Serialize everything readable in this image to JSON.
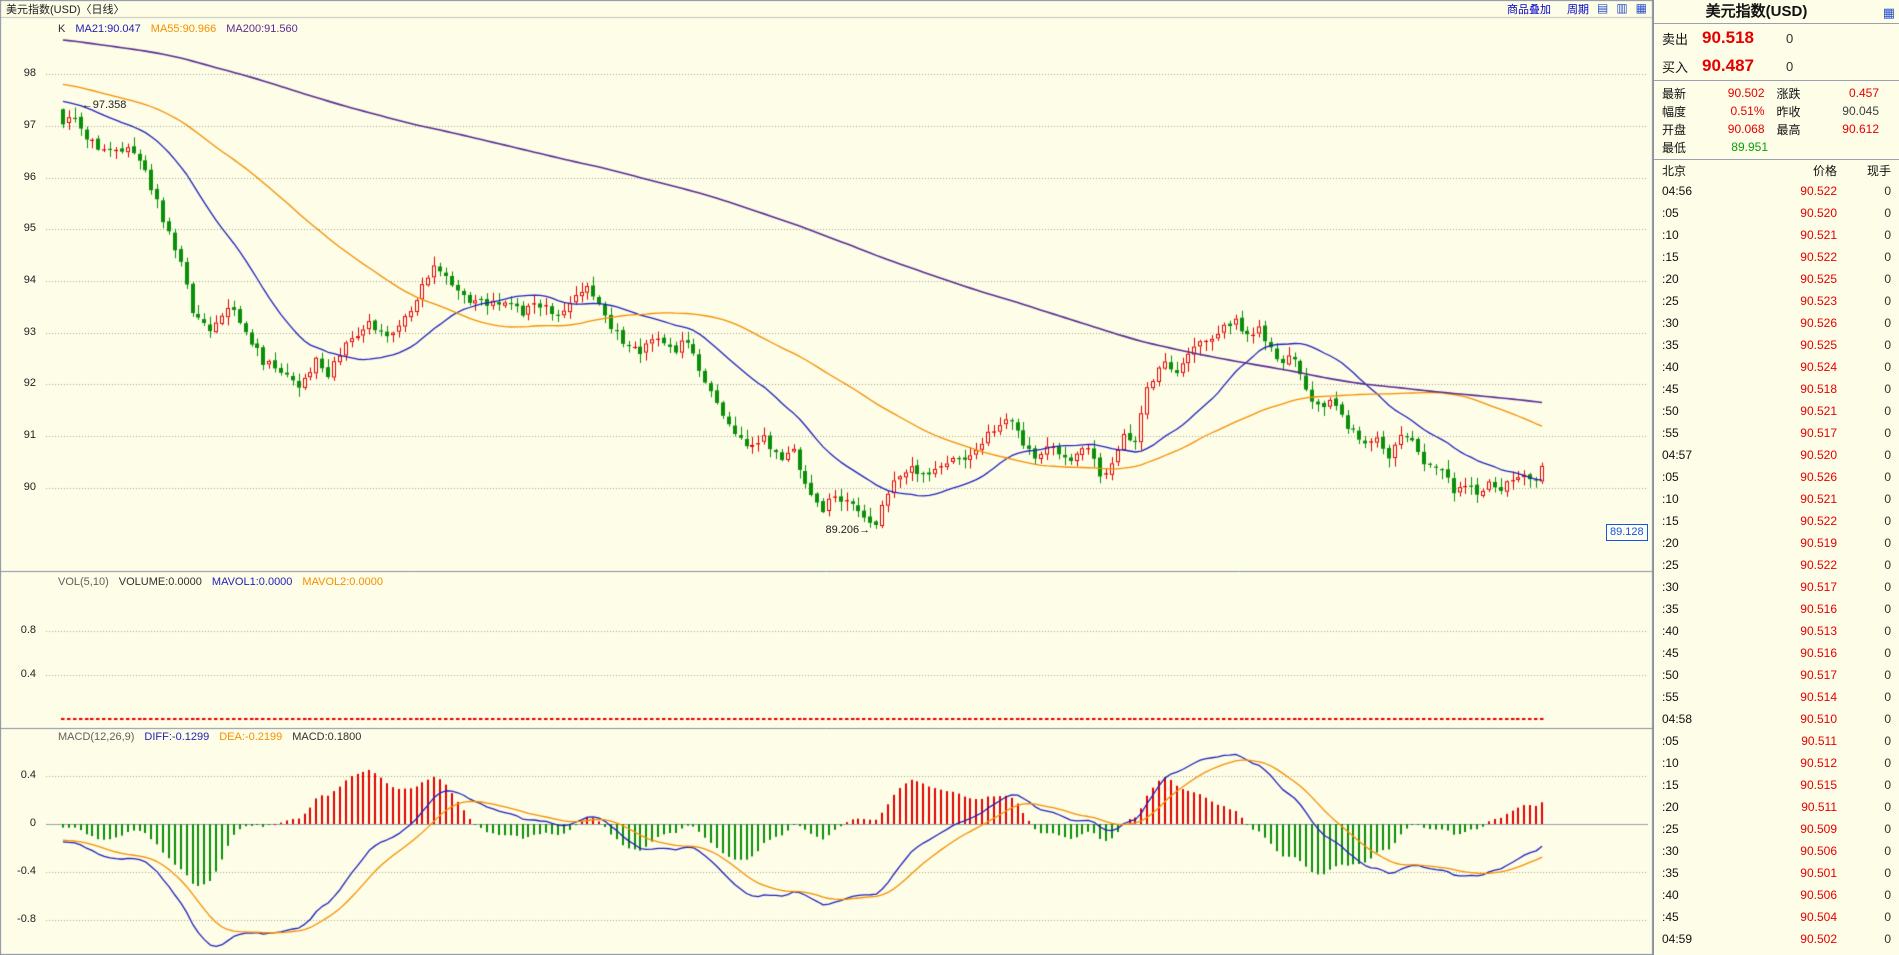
{
  "window": {
    "chart_title": "美元指数(USD)〈日线〉",
    "toolbar": {
      "overlay": "商品叠加",
      "period": "周期",
      "icon_glyphs": [
        "▤",
        "▥",
        "▦"
      ]
    }
  },
  "colors": {
    "bg": "#fdfde8",
    "up": "#e60000",
    "down": "#0b8f0b",
    "ma21": "#2222bb",
    "ma55": "#f59000",
    "ma200": "#5b2d8e",
    "grid": "#a8a890",
    "border": "#8890a0",
    "zero_line": "#9aa0a8",
    "link": "#0000cc",
    "tag": "#1555e0",
    "red": "#e60000",
    "green": "#0aa00a",
    "text": "#303030",
    "muted": "#606060"
  },
  "main_panel": {
    "legend": [
      {
        "text": "K",
        "color": "#303030"
      },
      {
        "text": "MA21:90.047",
        "color": "#2222bb"
      },
      {
        "text": "MA55:90.966",
        "color": "#f59000"
      },
      {
        "text": "MA200:91.560",
        "color": "#5b2d8e"
      }
    ],
    "high_label": "←97.358",
    "low_label": "89.206→",
    "right_tag": "89.128"
  },
  "vol_panel": {
    "legend": [
      {
        "text": "VOL(5,10)",
        "color": "#606060"
      },
      {
        "text": "VOLUME:0.0000",
        "color": "#303030"
      },
      {
        "text": "MAVOL1:0.0000",
        "color": "#2222bb"
      },
      {
        "text": "MAVOL2:0.0000",
        "color": "#f59000"
      }
    ]
  },
  "macd_panel": {
    "legend": [
      {
        "text": "MACD(12,26,9)",
        "color": "#606060"
      },
      {
        "text": "DIFF:-0.1299",
        "color": "#2222bb"
      },
      {
        "text": "DEA:-0.2199",
        "color": "#f59000"
      },
      {
        "text": "MACD:0.1800",
        "color": "#303030"
      }
    ]
  },
  "quote_panel": {
    "title": "美元指数(USD)",
    "icon_glyph": "▦",
    "sell": {
      "label": "卖出",
      "price": "90.518",
      "qty": "0"
    },
    "buy": {
      "label": "买入",
      "price": "90.487",
      "qty": "0"
    },
    "stats_rows": [
      [
        {
          "label": "最新",
          "value": "90.502",
          "cls": "red"
        },
        {
          "label": "涨跌",
          "value": "0.457",
          "cls": "red"
        }
      ],
      [
        {
          "label": "幅度",
          "value": "0.51%",
          "cls": "red"
        },
        {
          "label": "昨收",
          "value": "90.045",
          "cls": "plain"
        }
      ],
      [
        {
          "label": "开盘",
          "value": "90.068",
          "cls": "red"
        },
        {
          "label": "最高",
          "value": "90.612",
          "cls": "red"
        }
      ],
      [
        {
          "label": "最低",
          "value": "89.951",
          "cls": "green"
        }
      ]
    ],
    "table_header": [
      "北京",
      "价格",
      "现手"
    ],
    "ticks": [
      [
        "04:56",
        "90.522",
        "0"
      ],
      [
        ":05",
        "90.520",
        "0"
      ],
      [
        ":10",
        "90.521",
        "0"
      ],
      [
        ":15",
        "90.522",
        "0"
      ],
      [
        ":20",
        "90.525",
        "0"
      ],
      [
        ":25",
        "90.523",
        "0"
      ],
      [
        ":30",
        "90.526",
        "0"
      ],
      [
        ":35",
        "90.525",
        "0"
      ],
      [
        ":40",
        "90.524",
        "0"
      ],
      [
        ":45",
        "90.518",
        "0"
      ],
      [
        ":50",
        "90.521",
        "0"
      ],
      [
        ":55",
        "90.517",
        "0"
      ],
      [
        "04:57",
        "90.520",
        "0"
      ],
      [
        ":05",
        "90.526",
        "0"
      ],
      [
        ":10",
        "90.521",
        "0"
      ],
      [
        ":15",
        "90.522",
        "0"
      ],
      [
        ":20",
        "90.519",
        "0"
      ],
      [
        ":25",
        "90.522",
        "0"
      ],
      [
        ":30",
        "90.517",
        "0"
      ],
      [
        ":35",
        "90.516",
        "0"
      ],
      [
        ":40",
        "90.513",
        "0"
      ],
      [
        ":45",
        "90.516",
        "0"
      ],
      [
        ":50",
        "90.517",
        "0"
      ],
      [
        ":55",
        "90.514",
        "0"
      ],
      [
        "04:58",
        "90.510",
        "0"
      ],
      [
        ":05",
        "90.511",
        "0"
      ],
      [
        ":10",
        "90.512",
        "0"
      ],
      [
        ":15",
        "90.515",
        "0"
      ],
      [
        ":20",
        "90.511",
        "0"
      ],
      [
        ":25",
        "90.509",
        "0"
      ],
      [
        ":30",
        "90.506",
        "0"
      ],
      [
        ":35",
        "90.501",
        "0"
      ],
      [
        ":40",
        "90.506",
        "0"
      ],
      [
        ":45",
        "90.504",
        "0"
      ],
      [
        "04:59",
        "90.502",
        "0"
      ]
    ]
  },
  "chart_data": {
    "type": "candlestick",
    "symbol": "美元指数(USD)",
    "period": "日线",
    "visible_count": 252,
    "y_range": [
      88.45,
      99.05
    ],
    "y_gridlines": [
      98,
      97,
      96,
      95,
      94,
      93,
      92,
      91,
      90
    ],
    "marked_high": {
      "index": 2,
      "price": 97.358
    },
    "marked_low": {
      "index": 138,
      "price": 89.206
    },
    "right_axis_tag": 89.128,
    "ma_periods": [
      21,
      55,
      200
    ],
    "ma_displayed": {
      "ma21": 90.047,
      "ma55": 90.966,
      "ma200": 91.56
    },
    "volume": {
      "volume": 0,
      "mavol1": 0,
      "mavol2": 0,
      "y_gridlines": [
        0.8,
        0.4
      ]
    },
    "macd": {
      "params": [
        12,
        26,
        9
      ],
      "diff": -0.1299,
      "dea": -0.2199,
      "bar": 0.18,
      "y_gridlines": [
        0.4,
        0,
        -0.4,
        -0.8
      ]
    },
    "prehistory_anchors": [
      [
        -200,
        99.8
      ],
      [
        -140,
        99.1
      ],
      [
        -90,
        98.6
      ],
      [
        -40,
        98.1
      ],
      [
        -1,
        97.3
      ]
    ],
    "close_anchors": [
      [
        0,
        97.05
      ],
      [
        2,
        97.2
      ],
      [
        4,
        96.8
      ],
      [
        8,
        96.45
      ],
      [
        12,
        96.55
      ],
      [
        14,
        96.1
      ],
      [
        17,
        95.2
      ],
      [
        20,
        94.3
      ],
      [
        22,
        93.4
      ],
      [
        25,
        93.1
      ],
      [
        28,
        93.55
      ],
      [
        31,
        93.0
      ],
      [
        34,
        92.45
      ],
      [
        37,
        92.3
      ],
      [
        40,
        92.0
      ],
      [
        43,
        92.45
      ],
      [
        45,
        92.15
      ],
      [
        48,
        92.8
      ],
      [
        52,
        93.15
      ],
      [
        55,
        92.95
      ],
      [
        58,
        93.3
      ],
      [
        61,
        93.9
      ],
      [
        63,
        94.35
      ],
      [
        66,
        93.9
      ],
      [
        69,
        93.6
      ],
      [
        72,
        93.55
      ],
      [
        75,
        93.65
      ],
      [
        78,
        93.4
      ],
      [
        81,
        93.55
      ],
      [
        84,
        93.3
      ],
      [
        87,
        93.65
      ],
      [
        89,
        93.95
      ],
      [
        92,
        93.3
      ],
      [
        95,
        92.85
      ],
      [
        98,
        92.6
      ],
      [
        101,
        92.95
      ],
      [
        104,
        92.7
      ],
      [
        106,
        92.85
      ],
      [
        108,
        92.3
      ],
      [
        111,
        91.6
      ],
      [
        113,
        91.15
      ],
      [
        116,
        90.8
      ],
      [
        119,
        90.95
      ],
      [
        122,
        90.55
      ],
      [
        124,
        90.75
      ],
      [
        126,
        90.05
      ],
      [
        129,
        89.6
      ],
      [
        131,
        89.85
      ],
      [
        134,
        89.7
      ],
      [
        136,
        89.5
      ],
      [
        138,
        89.3
      ],
      [
        140,
        89.9
      ],
      [
        142,
        90.25
      ],
      [
        144,
        90.4
      ],
      [
        147,
        90.25
      ],
      [
        150,
        90.45
      ],
      [
        153,
        90.6
      ],
      [
        156,
        90.9
      ],
      [
        160,
        91.4
      ],
      [
        163,
        90.9
      ],
      [
        165,
        90.65
      ],
      [
        168,
        90.8
      ],
      [
        171,
        90.6
      ],
      [
        174,
        90.85
      ],
      [
        176,
        90.15
      ],
      [
        178,
        90.5
      ],
      [
        180,
        91.1
      ],
      [
        182,
        90.9
      ],
      [
        184,
        91.9
      ],
      [
        187,
        92.45
      ],
      [
        189,
        92.2
      ],
      [
        192,
        92.75
      ],
      [
        195,
        92.9
      ],
      [
        199,
        93.25
      ],
      [
        201,
        92.95
      ],
      [
        203,
        93.1
      ],
      [
        206,
        92.45
      ],
      [
        209,
        92.5
      ],
      [
        211,
        91.95
      ],
      [
        213,
        91.55
      ],
      [
        215,
        91.7
      ],
      [
        217,
        91.35
      ],
      [
        219,
        91.05
      ],
      [
        221,
        90.85
      ],
      [
        223,
        91.0
      ],
      [
        225,
        90.65
      ],
      [
        227,
        91.1
      ],
      [
        229,
        90.9
      ],
      [
        231,
        90.5
      ],
      [
        234,
        90.3
      ],
      [
        236,
        89.95
      ],
      [
        238,
        90.1
      ],
      [
        240,
        89.9
      ],
      [
        242,
        90.1
      ],
      [
        244,
        90.0
      ],
      [
        246,
        90.2
      ],
      [
        248,
        90.3
      ],
      [
        250,
        90.2
      ],
      [
        251,
        90.5
      ]
    ],
    "noise": {
      "seed": 11,
      "close_jitter": 0.085,
      "wick_ext_max": 0.16
    }
  }
}
